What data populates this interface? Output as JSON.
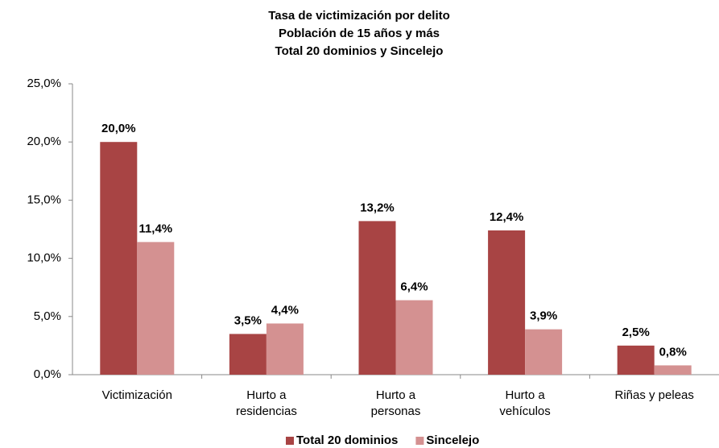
{
  "chart_data": {
    "type": "bar",
    "title": "Tasa de victimización por delito",
    "subtitle": [
      "Población de 15 años y más",
      "Total 20 dominios y Sincelejo"
    ],
    "categories": [
      "Victimización",
      "Hurto a\nresidencias",
      "Hurto a\npersonas",
      "Hurto a\nvehículos",
      "Riñas y peleas"
    ],
    "series": [
      {
        "name": "Total 20 dominios",
        "color": "#a84444",
        "values": [
          20.0,
          3.5,
          13.2,
          12.4,
          2.5
        ],
        "value_labels": [
          "20,0%",
          "3,5%",
          "13,2%",
          "12,4%",
          "2,5%"
        ]
      },
      {
        "name": "Sincelejo",
        "color": "#d49191",
        "values": [
          11.4,
          4.4,
          6.4,
          3.9,
          0.8
        ],
        "value_labels": [
          "11,4%",
          "4,4%",
          "6,4%",
          "3,9%",
          "0,8%"
        ]
      }
    ],
    "ylim": [
      0,
      25
    ],
    "yticks": [
      {
        "value": 0,
        "label": "0,0%"
      },
      {
        "value": 5,
        "label": "5,0%"
      },
      {
        "value": 10,
        "label": "10,0%"
      },
      {
        "value": 15,
        "label": "15,0%"
      },
      {
        "value": 20,
        "label": "20,0%"
      },
      {
        "value": 25,
        "label": "25,0%"
      }
    ],
    "grid": false,
    "legend": "bottom"
  }
}
